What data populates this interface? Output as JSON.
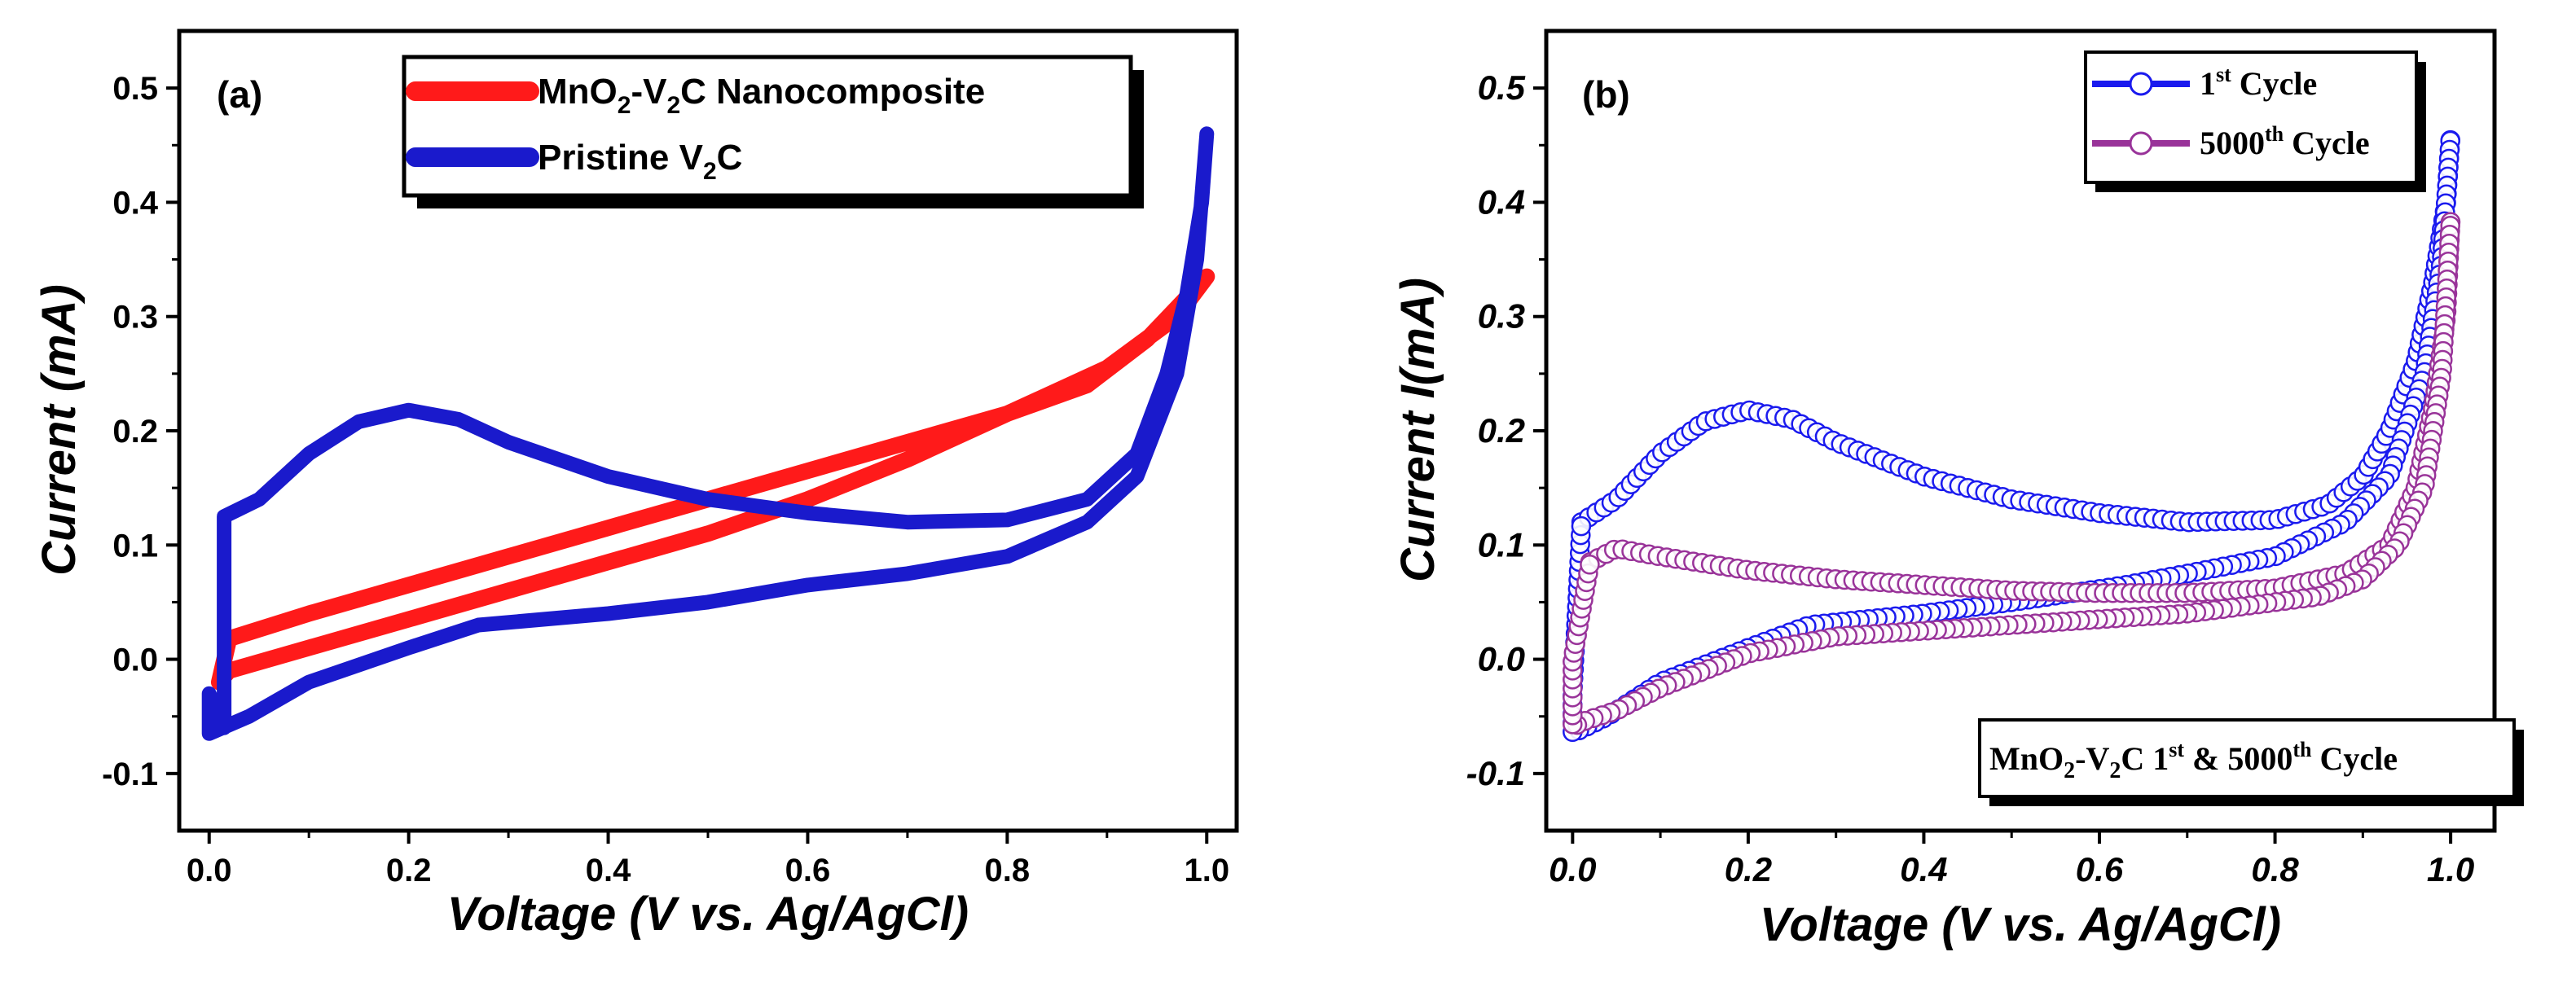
{
  "chart_data": [
    {
      "type": "line",
      "panel_label": "(a)",
      "xlabel": "Voltage (V vs. Ag/AgCl)",
      "ylabel": "Current (mA)",
      "xlim": [
        -0.03,
        1.03
      ],
      "ylim": [
        -0.15,
        0.55
      ],
      "xticks": [
        "0.0",
        "0.2",
        "0.4",
        "0.6",
        "0.8",
        "1.0"
      ],
      "yticks": [
        "-0.1",
        "0.0",
        "0.1",
        "0.2",
        "0.3",
        "0.4",
        "0.5"
      ],
      "legend_position": "top",
      "series": [
        {
          "name": "MnO2-V2C Nanocomposite",
          "name_parts": [
            "MnO",
            "2",
            "-V",
            "2",
            "C Nanocomposite"
          ],
          "color": "#ff1a1a",
          "x": [
            0.02,
            0.1,
            0.2,
            0.3,
            0.4,
            0.5,
            0.6,
            0.7,
            0.8,
            0.88,
            0.94,
            1.0,
            0.97,
            0.9,
            0.8,
            0.7,
            0.6,
            0.5,
            0.4,
            0.3,
            0.2,
            0.1,
            0.02,
            0.01,
            0.02
          ],
          "y": [
            0.018,
            0.04,
            0.065,
            0.09,
            0.115,
            0.14,
            0.165,
            0.19,
            0.215,
            0.24,
            0.28,
            0.335,
            0.3,
            0.255,
            0.215,
            0.175,
            0.14,
            0.11,
            0.085,
            0.06,
            0.035,
            0.01,
            -0.01,
            -0.02,
            0.018
          ]
        },
        {
          "name": "Pristine V2C",
          "name_parts": [
            "Pristine V",
            "2",
            "C"
          ],
          "color": "#1a1acc",
          "x": [
            0.015,
            0.015,
            0.05,
            0.1,
            0.15,
            0.2,
            0.25,
            0.3,
            0.4,
            0.5,
            0.6,
            0.7,
            0.8,
            0.88,
            0.93,
            0.96,
            0.98,
            0.995,
            1.0,
            0.99,
            0.97,
            0.93,
            0.88,
            0.8,
            0.7,
            0.6,
            0.5,
            0.4,
            0.27,
            0.2,
            0.1,
            0.04,
            0.0,
            0.0,
            0.015
          ],
          "y": [
            -0.06,
            0.125,
            0.14,
            0.18,
            0.208,
            0.218,
            0.21,
            0.19,
            0.16,
            0.14,
            0.128,
            0.12,
            0.122,
            0.14,
            0.18,
            0.25,
            0.32,
            0.4,
            0.46,
            0.35,
            0.25,
            0.16,
            0.12,
            0.09,
            0.075,
            0.065,
            0.05,
            0.04,
            0.03,
            0.01,
            -0.02,
            -0.05,
            -0.065,
            -0.03,
            -0.06
          ]
        }
      ]
    },
    {
      "type": "line",
      "panel_label": "(b)",
      "xlabel": "Voltage (V vs. Ag/AgCl)",
      "ylabel": "Current I(mA)",
      "xlim": [
        -0.03,
        1.05
      ],
      "ylim": [
        -0.15,
        0.55
      ],
      "xticks": [
        "0.0",
        "0.2",
        "0.4",
        "0.6",
        "0.8",
        "1.0"
      ],
      "yticks": [
        "-0.1",
        "0.0",
        "0.1",
        "0.2",
        "0.3",
        "0.4",
        "0.5"
      ],
      "legend_position": "top-right",
      "annotation": "MnO2-V2C 1st & 5000th Cycle",
      "annotation_parts": [
        "MnO",
        "2",
        "-V",
        "2",
        "C 1",
        "st",
        " & 5000",
        "th",
        " Cycle"
      ],
      "series": [
        {
          "name": "1st Cycle",
          "name_parts": [
            "1",
            "st",
            " Cycle"
          ],
          "color": "#1a1aee",
          "x": [
            0.01,
            0.05,
            0.1,
            0.15,
            0.2,
            0.25,
            0.3,
            0.4,
            0.5,
            0.6,
            0.7,
            0.8,
            0.86,
            0.9,
            0.93,
            0.96,
            0.98,
            0.995,
            1.0,
            0.99,
            0.97,
            0.93,
            0.88,
            0.8,
            0.7,
            0.63,
            0.5,
            0.4,
            0.27,
            0.2,
            0.1,
            0.04,
            0.0,
            0.0,
            0.01
          ],
          "y": [
            0.12,
            0.14,
            0.18,
            0.208,
            0.218,
            0.21,
            0.19,
            0.16,
            0.14,
            0.128,
            0.12,
            0.122,
            0.135,
            0.16,
            0.2,
            0.26,
            0.33,
            0.4,
            0.458,
            0.35,
            0.25,
            0.16,
            0.12,
            0.09,
            0.075,
            0.065,
            0.05,
            0.04,
            0.03,
            0.01,
            -0.02,
            -0.05,
            -0.065,
            -0.03,
            0.12
          ]
        },
        {
          "name": "5000th Cycle",
          "name_parts": [
            "5000",
            "th",
            " Cycle"
          ],
          "color": "#993399",
          "x": [
            0.02,
            0.05,
            0.1,
            0.2,
            0.3,
            0.4,
            0.5,
            0.6,
            0.7,
            0.8,
            0.88,
            0.93,
            0.96,
            0.98,
            0.995,
            1.0,
            0.99,
            0.97,
            0.94,
            0.9,
            0.85,
            0.8,
            0.7,
            0.6,
            0.5,
            0.4,
            0.3,
            0.2,
            0.1,
            0.05,
            0.01,
            0.0,
            0.0,
            0.02
          ],
          "y": [
            0.085,
            0.097,
            0.09,
            0.078,
            0.07,
            0.065,
            0.06,
            0.058,
            0.058,
            0.062,
            0.075,
            0.1,
            0.15,
            0.22,
            0.3,
            0.385,
            0.25,
            0.15,
            0.1,
            0.07,
            0.055,
            0.05,
            0.04,
            0.035,
            0.03,
            0.025,
            0.02,
            0.005,
            -0.025,
            -0.045,
            -0.055,
            -0.06,
            0.0,
            0.085
          ]
        }
      ]
    }
  ]
}
